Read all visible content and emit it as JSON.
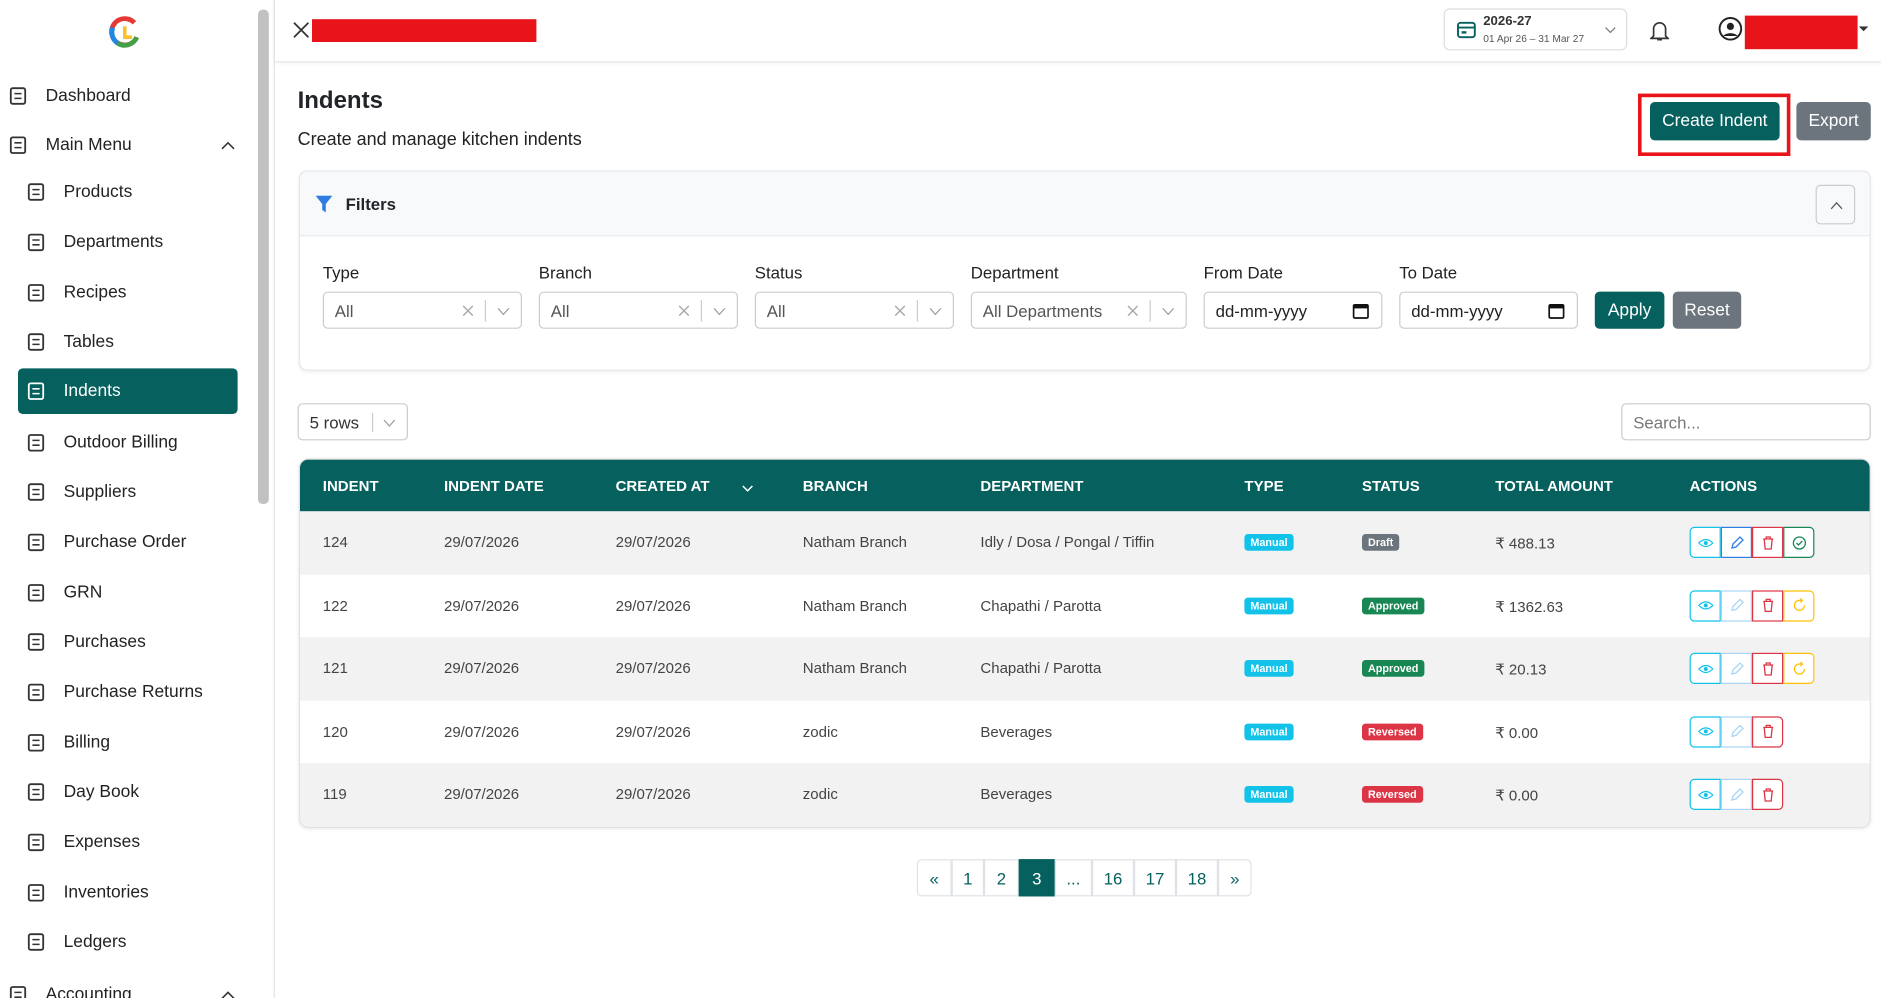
{
  "header": {
    "fiscal_year": "2026-27",
    "fiscal_range": "01 Apr 26 – 31 Mar 27"
  },
  "sidebar": {
    "items": [
      "Dashboard",
      "Main Menu",
      "Products",
      "Departments",
      "Recipes",
      "Tables",
      "Indents",
      "Outdoor Billing",
      "Suppliers",
      "Purchase Order",
      "GRN",
      "Purchases",
      "Purchase Returns",
      "Billing",
      "Day Book",
      "Expenses",
      "Inventories",
      "Ledgers",
      "Accounting"
    ]
  },
  "page": {
    "title": "Indents",
    "subtitle": "Create and manage kitchen indents",
    "create_button": "Create Indent",
    "export_button": "Export"
  },
  "filters": {
    "title": "Filters",
    "fields": [
      {
        "label": "Type",
        "value": "All"
      },
      {
        "label": "Branch",
        "value": "All"
      },
      {
        "label": "Status",
        "value": "All"
      },
      {
        "label": "Department",
        "value": "All Departments"
      },
      {
        "label": "From Date",
        "value": "dd-mm-yyyy"
      },
      {
        "label": "To Date",
        "value": "dd-mm-yyyy"
      }
    ],
    "apply": "Apply",
    "reset": "Reset"
  },
  "table_controls": {
    "rows_select": "5 rows",
    "search_placeholder": "Search..."
  },
  "table": {
    "headers": [
      "INDENT",
      "INDENT DATE",
      "CREATED AT",
      "BRANCH",
      "DEPARTMENT",
      "TYPE",
      "STATUS",
      "TOTAL AMOUNT",
      "ACTIONS"
    ],
    "rows": [
      [
        "124",
        "29/07/2026",
        "29/07/2026",
        "Natham Branch",
        "Idly / Dosa / Pongal / Tiffin",
        "Manual",
        "Draft",
        "₹ 488.13"
      ],
      [
        "122",
        "29/07/2026",
        "29/07/2026",
        "Natham Branch",
        "Chapathi / Parotta",
        "Manual",
        "Approved",
        "₹ 1362.63"
      ],
      [
        "121",
        "29/07/2026",
        "29/07/2026",
        "Natham Branch",
        "Chapathi / Parotta",
        "Manual",
        "Approved",
        "₹ 20.13"
      ],
      [
        "120",
        "29/07/2026",
        "29/07/2026",
        "zodic",
        "Beverages",
        "Manual",
        "Reversed",
        "₹ 0.00"
      ],
      [
        "119",
        "29/07/2026",
        "29/07/2026",
        "zodic",
        "Beverages",
        "Manual",
        "Reversed",
        "₹ 0.00"
      ]
    ]
  },
  "pagination": [
    "«",
    "1",
    "2",
    "3",
    "...",
    "16",
    "17",
    "18",
    "»"
  ]
}
